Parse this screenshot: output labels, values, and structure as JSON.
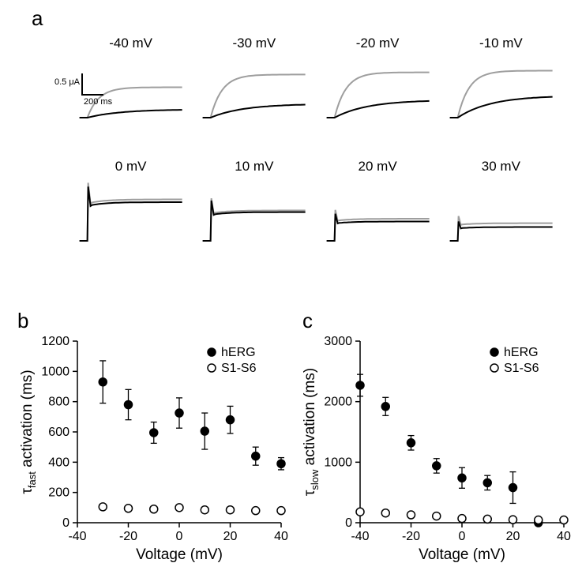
{
  "figure": {
    "panel_a": {
      "label": "a",
      "scalebar": {
        "y_label": "0.5 μA",
        "x_label": "200 ms"
      },
      "trace_color_gray": "#9e9e9e",
      "trace_color_black": "#000000",
      "traces": [
        {
          "voltage_label": "-40 mV",
          "gray_level": 0.55,
          "black_level": 0.15
        },
        {
          "voltage_label": "-30 mV",
          "gray_level": 0.78,
          "black_level": 0.25
        },
        {
          "voltage_label": "-20 mV",
          "gray_level": 0.82,
          "black_level": 0.32
        },
        {
          "voltage_label": "-10 mV",
          "gray_level": 0.85,
          "black_level": 0.4
        },
        {
          "voltage_label": "0 mV",
          "gray_level": 0.75,
          "black_level": 0.7,
          "spike": true
        },
        {
          "voltage_label": "10 mV",
          "gray_level": 0.55,
          "black_level": 0.52,
          "spike": true
        },
        {
          "voltage_label": "20 mV",
          "gray_level": 0.4,
          "black_level": 0.35,
          "spike": true
        },
        {
          "voltage_label": "30 mV",
          "gray_level": 0.32,
          "black_level": 0.25,
          "spike": true
        }
      ]
    },
    "panel_b": {
      "label": "b",
      "type": "scatter",
      "xlabel": "Voltage (mV)",
      "ylabel": "τfast activation (ms)",
      "ylabel_prefix": "τ",
      "ylabel_sub": "fast",
      "ylabel_rest": " activation (ms)",
      "xlim": [
        -40,
        40
      ],
      "xtick_step": 20,
      "ylim": [
        0,
        1200
      ],
      "ytick_step": 200,
      "legend": [
        {
          "name": "hERG",
          "marker": "filled",
          "color": "#000000"
        },
        {
          "name": "S1-S6",
          "marker": "open",
          "color": "#000000"
        }
      ],
      "series_herg": {
        "x": [
          -30,
          -20,
          -10,
          0,
          10,
          20,
          30,
          40
        ],
        "y": [
          930,
          780,
          595,
          725,
          605,
          680,
          440,
          390
        ],
        "err": [
          140,
          100,
          70,
          100,
          120,
          90,
          60,
          40
        ]
      },
      "series_s1s6": {
        "x": [
          -30,
          -20,
          -10,
          0,
          10,
          20,
          30,
          40
        ],
        "y": [
          105,
          95,
          90,
          100,
          85,
          85,
          80,
          80
        ],
        "err": [
          15,
          15,
          12,
          15,
          12,
          12,
          10,
          10
        ]
      },
      "marker_radius": 5,
      "line_width": 1.5
    },
    "panel_c": {
      "label": "c",
      "type": "scatter",
      "xlabel": "Voltage (mV)",
      "ylabel_prefix": "τ",
      "ylabel_sub": "slow",
      "ylabel_rest": " activation (ms)",
      "xlim": [
        -40,
        40
      ],
      "xtick_step": 20,
      "ylim": [
        0,
        3000
      ],
      "ytick_step": 1000,
      "legend": [
        {
          "name": "hERG",
          "marker": "filled",
          "color": "#000000"
        },
        {
          "name": "S1-S6",
          "marker": "open",
          "color": "#000000"
        }
      ],
      "series_herg": {
        "x": [
          -40,
          -30,
          -20,
          -10,
          0,
          10,
          20,
          30
        ],
        "y": [
          2270,
          1920,
          1320,
          940,
          740,
          660,
          580,
          0
        ],
        "err": [
          180,
          150,
          120,
          120,
          170,
          120,
          260,
          0
        ]
      },
      "series_s1s6": {
        "x": [
          -40,
          -30,
          -20,
          -10,
          0,
          10,
          20,
          30,
          40
        ],
        "y": [
          180,
          160,
          130,
          110,
          70,
          60,
          50,
          45,
          45
        ],
        "err": [
          25,
          25,
          20,
          18,
          15,
          15,
          12,
          12,
          12
        ]
      },
      "marker_radius": 5,
      "line_width": 1.5
    },
    "colors": {
      "bg": "#ffffff",
      "axis": "#000000",
      "grid": "#ffffff"
    },
    "font": {
      "label_pt": 26,
      "axis_pt": 19,
      "tick_pt": 16,
      "trace_title_pt": 17
    }
  }
}
